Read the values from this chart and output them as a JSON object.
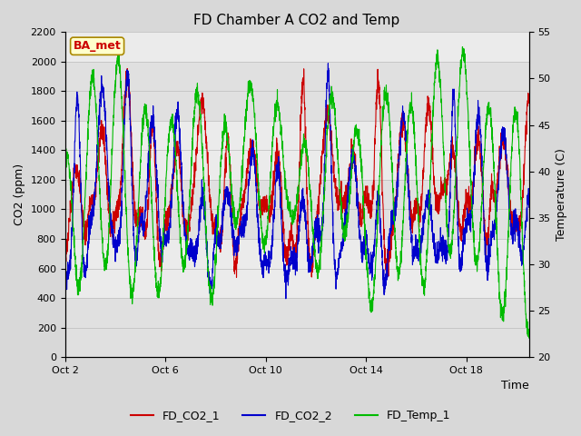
{
  "title": "FD Chamber A CO2 and Temp",
  "xlabel": "Time",
  "ylabel_left": "CO2 (ppm)",
  "ylabel_right": "Temperature (C)",
  "ylim_left": [
    0,
    2200
  ],
  "ylim_right": [
    20,
    55
  ],
  "yticks_left": [
    0,
    200,
    400,
    600,
    800,
    1000,
    1200,
    1400,
    1600,
    1800,
    2000,
    2200
  ],
  "yticks_right": [
    20,
    25,
    30,
    35,
    40,
    45,
    50,
    55
  ],
  "xtick_labels": [
    "Oct 2",
    "Oct 6",
    "Oct 10",
    "Oct 14",
    "Oct 18"
  ],
  "xtick_positions": [
    0,
    4,
    8,
    12,
    16
  ],
  "xlim": [
    0,
    18.5
  ],
  "bg_color": "#e8e8e8",
  "plot_bg_color": "#f0f0f0",
  "color_co2_1": "#cc0000",
  "color_co2_2": "#0000cc",
  "color_temp": "#00bb00",
  "legend_labels": [
    "FD_CO2_1",
    "FD_CO2_2",
    "FD_Temp_1"
  ],
  "badge_text": "BA_met",
  "badge_bg": "#ffffcc",
  "badge_border": "#aa8800",
  "badge_text_color": "#cc0000",
  "title_fontsize": 11,
  "axis_label_fontsize": 9,
  "tick_fontsize": 8,
  "legend_fontsize": 9,
  "linewidth": 0.8,
  "bands": [
    [
      0,
      400,
      "#e0e0e0"
    ],
    [
      400,
      800,
      "#ebebeb"
    ],
    [
      800,
      1200,
      "#e0e0e0"
    ],
    [
      1200,
      1600,
      "#ebebeb"
    ],
    [
      1600,
      2000,
      "#e0e0e0"
    ],
    [
      2000,
      2200,
      "#ebebeb"
    ]
  ]
}
